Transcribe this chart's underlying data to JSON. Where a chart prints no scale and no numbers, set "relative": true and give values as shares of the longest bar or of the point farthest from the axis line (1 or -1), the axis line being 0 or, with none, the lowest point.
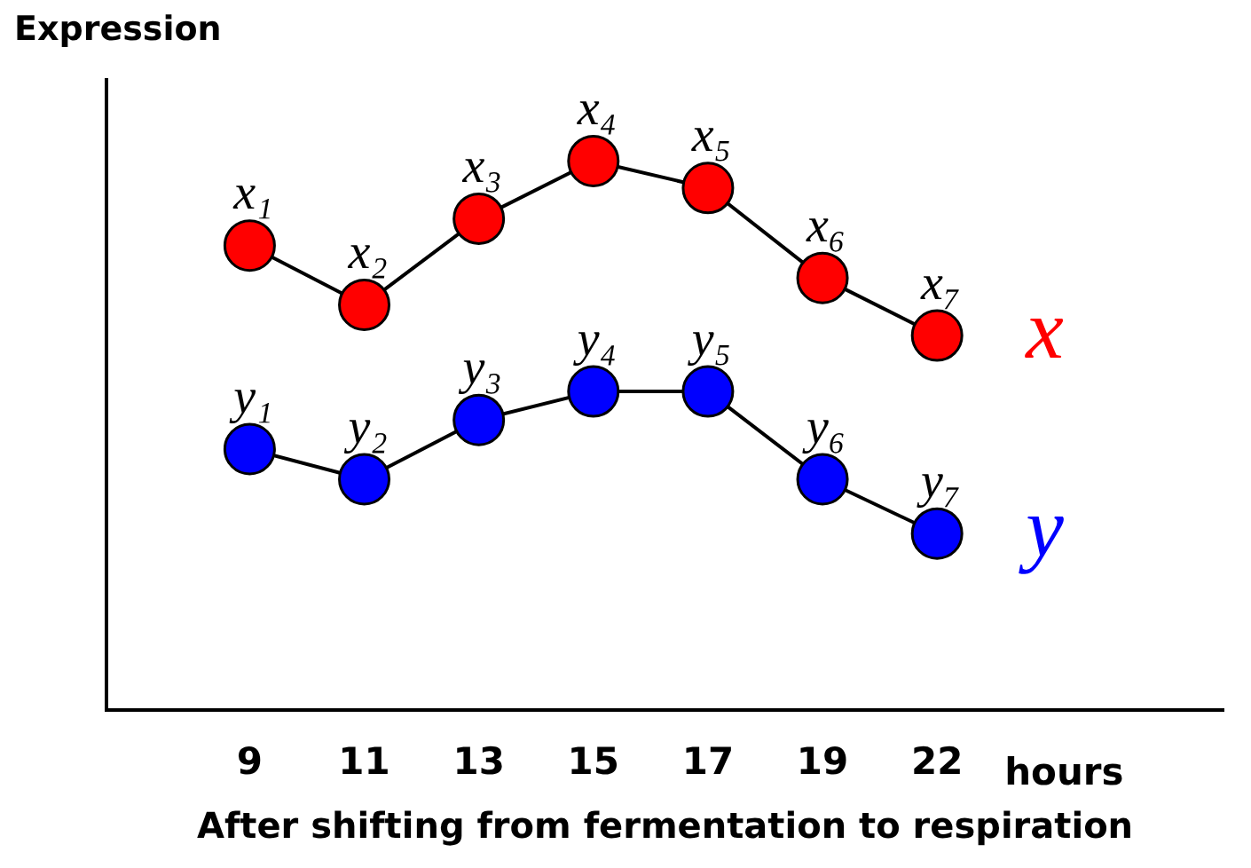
{
  "chart_data": {
    "type": "line",
    "relative": true,
    "ylabel": "Expression",
    "xlabel": "After shifting from fermentation to respiration",
    "annotations": [
      "hours",
      {
        "text": "x₁",
        "x": "9",
        "y": 0.846
      },
      {
        "text": "x₂",
        "x": "11",
        "y": 0.738
      },
      {
        "text": "x₃",
        "x": "13",
        "y": 0.895
      },
      {
        "text": "x₄",
        "x": "15",
        "y": 1
      },
      {
        "text": "x₅",
        "x": "17",
        "y": 0.951
      },
      {
        "text": "x₆",
        "x": "19",
        "y": 0.787
      },
      {
        "text": "x₇",
        "x": "22",
        "y": 0.682
      },
      {
        "text": "y₁",
        "x": "9",
        "y": 0.475
      },
      {
        "text": "y₂",
        "x": "11",
        "y": 0.42
      },
      {
        "text": "y₃",
        "x": "13",
        "y": 0.528
      },
      {
        "text": "y₄",
        "x": "15",
        "y": 0.58
      },
      {
        "text": "y₅",
        "x": "17",
        "y": 0.58
      },
      {
        "text": "y₆",
        "x": "19",
        "y": 0.42
      },
      {
        "text": "y₇",
        "x": "22",
        "y": 0.321
      }
    ],
    "categories": [
      "9",
      "11",
      "13",
      "15",
      "17",
      "19",
      "22"
    ],
    "marker": "circle",
    "line_style": "solid",
    "grid": false,
    "legend": false,
    "series": [
      {
        "name": "x",
        "color": "#ff0000",
        "values": [
          0.846,
          0.738,
          0.895,
          1,
          0.951,
          0.787,
          0.682
        ]
      },
      {
        "name": "y",
        "color": "#0000ff",
        "values": [
          0.475,
          0.42,
          0.528,
          0.58,
          0.58,
          0.42,
          0.321
        ]
      }
    ]
  }
}
